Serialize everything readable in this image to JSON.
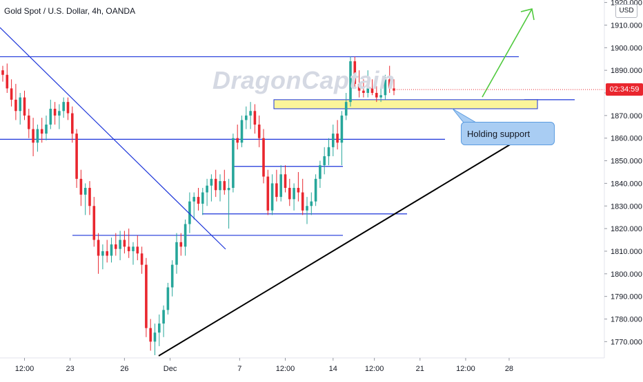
{
  "header": {
    "title": "Gold Spot / U.S. Dollar, 4h, OANDA",
    "watermark": "DragonCaptain"
  },
  "price_axis": {
    "currency_label": "USD",
    "current_price_countdown": "02:34:59"
  },
  "annotation": {
    "callout_text": "Holding support"
  },
  "colors": {
    "up_candle": "#26a69a",
    "down_candle": "#e9262e",
    "level_lines": "#1a33d9",
    "trendline": "#000000",
    "projection_arrow": "#4fc93d",
    "support_zone_fill": "#fbf59a",
    "callout_fill": "#a9cdf3"
  },
  "chart_data": {
    "type": "candlestick",
    "title": "Gold Spot / U.S. Dollar, 4h, OANDA",
    "ylim": [
      1764,
      1922
    ],
    "y_ticks": [
      1770,
      1780,
      1790,
      1800,
      1810,
      1820,
      1830,
      1840,
      1850,
      1860,
      1870,
      1880,
      1890,
      1900,
      1910,
      1920
    ],
    "y_tick_labels": [
      "1770.000",
      "1780.000",
      "1790.000",
      "1800.000",
      "1810.000",
      "1820.000",
      "1830.000",
      "1840.000",
      "1850.000",
      "1860.000",
      "1870.000",
      "1880.000",
      "1890.000",
      "1900.000",
      "1910.000",
      "1920.000"
    ],
    "x_tick_labels": [
      "12:00",
      "23",
      "26",
      "Dec",
      "7",
      "12:00",
      "14",
      "12:00",
      "21",
      "12:00",
      "28"
    ],
    "x_tick_bar_index": [
      5,
      15.5,
      28,
      38.5,
      54.5,
      65,
      76,
      85.5,
      96,
      106.5,
      116.5
    ],
    "last_price": 1881.5,
    "candles": [
      [
        1890,
        1892,
        1885,
        1888
      ],
      [
        1888,
        1893,
        1880,
        1882
      ],
      [
        1882,
        1886,
        1874,
        1877
      ],
      [
        1877,
        1884,
        1868,
        1872
      ],
      [
        1872,
        1880,
        1866,
        1878
      ],
      [
        1878,
        1881,
        1868,
        1870
      ],
      [
        1870,
        1873,
        1860,
        1864
      ],
      [
        1864,
        1869,
        1852,
        1858
      ],
      [
        1858,
        1866,
        1854,
        1864
      ],
      [
        1864,
        1869,
        1858,
        1862
      ],
      [
        1862,
        1870,
        1859,
        1866
      ],
      [
        1866,
        1877,
        1864,
        1873
      ],
      [
        1873,
        1876,
        1866,
        1870
      ],
      [
        1870,
        1875,
        1864,
        1872
      ],
      [
        1872,
        1878,
        1869,
        1876
      ],
      [
        1876,
        1878,
        1868,
        1871
      ],
      [
        1871,
        1874,
        1858,
        1862
      ],
      [
        1862,
        1864,
        1838,
        1842
      ],
      [
        1842,
        1846,
        1830,
        1835
      ],
      [
        1835,
        1840,
        1826,
        1838
      ],
      [
        1838,
        1841,
        1826,
        1830
      ],
      [
        1830,
        1834,
        1812,
        1815
      ],
      [
        1815,
        1818,
        1800,
        1808
      ],
      [
        1808,
        1813,
        1802,
        1810
      ],
      [
        1810,
        1815,
        1805,
        1808
      ],
      [
        1808,
        1816,
        1805,
        1813
      ],
      [
        1813,
        1818,
        1808,
        1811
      ],
      [
        1811,
        1819,
        1806,
        1815
      ],
      [
        1815,
        1819,
        1809,
        1812
      ],
      [
        1812,
        1820,
        1807,
        1810
      ],
      [
        1810,
        1814,
        1804,
        1812
      ],
      [
        1812,
        1817,
        1806,
        1809
      ],
      [
        1809,
        1812,
        1800,
        1804
      ],
      [
        1804,
        1807,
        1772,
        1776
      ],
      [
        1776,
        1780,
        1766,
        1770
      ],
      [
        1770,
        1778,
        1764,
        1774
      ],
      [
        1774,
        1782,
        1768,
        1778
      ],
      [
        1778,
        1786,
        1772,
        1784
      ],
      [
        1784,
        1796,
        1782,
        1794
      ],
      [
        1794,
        1806,
        1790,
        1804
      ],
      [
        1804,
        1818,
        1800,
        1814
      ],
      [
        1814,
        1818,
        1808,
        1812
      ],
      [
        1812,
        1824,
        1808,
        1822
      ],
      [
        1822,
        1836,
        1818,
        1832
      ],
      [
        1832,
        1836,
        1824,
        1834
      ],
      [
        1834,
        1838,
        1828,
        1831
      ],
      [
        1831,
        1838,
        1826,
        1836
      ],
      [
        1836,
        1842,
        1830,
        1839
      ],
      [
        1839,
        1844,
        1832,
        1842
      ],
      [
        1842,
        1846,
        1834,
        1837
      ],
      [
        1837,
        1844,
        1832,
        1841
      ],
      [
        1841,
        1846,
        1835,
        1837
      ],
      [
        1837,
        1842,
        1820,
        1838
      ],
      [
        1838,
        1862,
        1836,
        1860
      ],
      [
        1860,
        1866,
        1855,
        1858
      ],
      [
        1858,
        1870,
        1856,
        1868
      ],
      [
        1868,
        1874,
        1864,
        1870
      ],
      [
        1870,
        1876,
        1864,
        1872
      ],
      [
        1872,
        1875,
        1862,
        1866
      ],
      [
        1866,
        1870,
        1856,
        1860
      ],
      [
        1860,
        1864,
        1840,
        1843
      ],
      [
        1843,
        1846,
        1826,
        1828
      ],
      [
        1828,
        1844,
        1826,
        1840
      ],
      [
        1840,
        1846,
        1832,
        1834
      ],
      [
        1834,
        1848,
        1832,
        1844
      ],
      [
        1844,
        1848,
        1836,
        1838
      ],
      [
        1838,
        1842,
        1830,
        1833
      ],
      [
        1833,
        1840,
        1828,
        1838
      ],
      [
        1838,
        1845,
        1832,
        1836
      ],
      [
        1836,
        1842,
        1826,
        1828
      ],
      [
        1828,
        1834,
        1822,
        1830
      ],
      [
        1830,
        1836,
        1826,
        1832
      ],
      [
        1832,
        1844,
        1830,
        1842
      ],
      [
        1842,
        1850,
        1838,
        1848
      ],
      [
        1848,
        1856,
        1844,
        1852
      ],
      [
        1852,
        1860,
        1848,
        1856
      ],
      [
        1856,
        1866,
        1852,
        1862
      ],
      [
        1862,
        1868,
        1855,
        1858
      ],
      [
        1858,
        1872,
        1848,
        1870
      ],
      [
        1870,
        1880,
        1868,
        1876
      ],
      [
        1876,
        1896,
        1874,
        1894
      ],
      [
        1894,
        1896,
        1882,
        1884
      ],
      [
        1884,
        1890,
        1878,
        1881
      ],
      [
        1881,
        1886,
        1878,
        1880
      ],
      [
        1880,
        1890,
        1878,
        1882
      ],
      [
        1882,
        1886,
        1879,
        1880
      ],
      [
        1880,
        1883,
        1876,
        1878
      ],
      [
        1878,
        1882,
        1876,
        1879
      ],
      [
        1879,
        1888,
        1877,
        1886
      ],
      [
        1886,
        1892,
        1880,
        1882
      ],
      [
        1882,
        1886,
        1879,
        1881
      ]
    ],
    "horizontal_levels": [
      1896,
      1859.5,
      1847.5,
      1826.5,
      1817
    ],
    "support_zone": [
      1873,
      1877
    ],
    "annotations": [
      "Holding support"
    ]
  }
}
